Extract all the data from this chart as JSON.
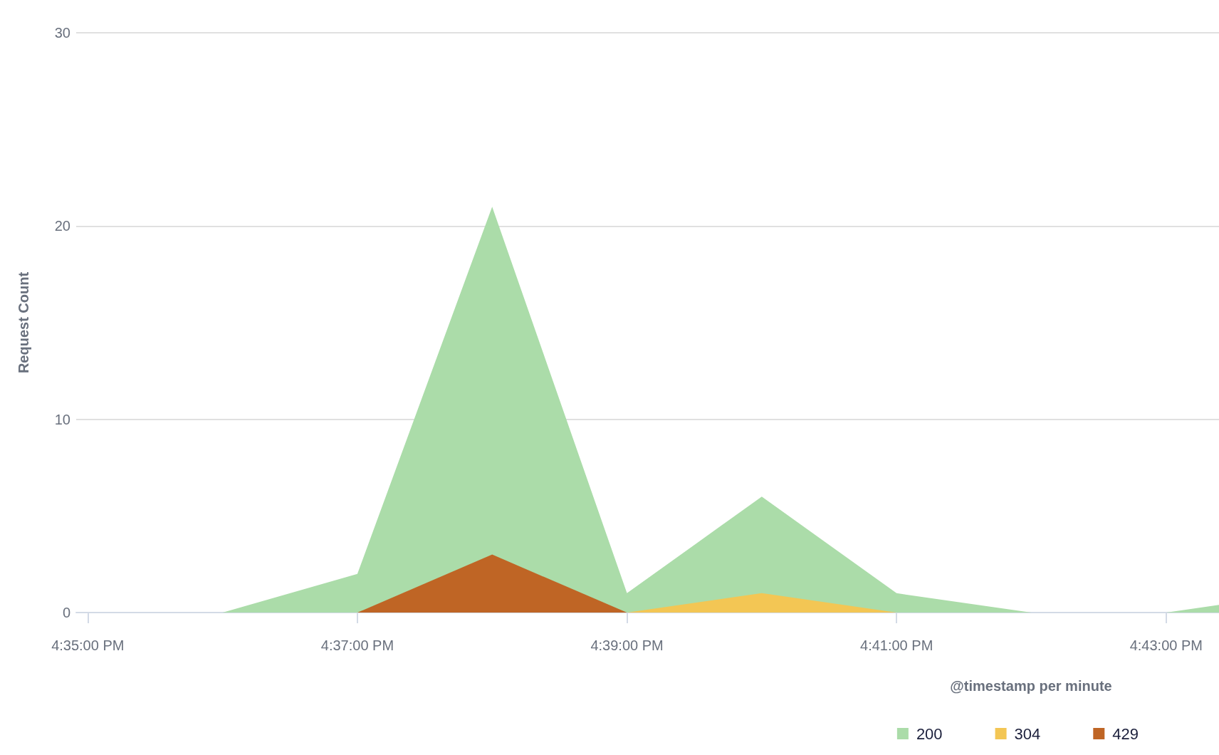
{
  "chart_data": {
    "type": "area",
    "xlabel": "@timestamp per minute",
    "ylabel": "Request Count",
    "xlim": [
      16.5819,
      16.7232
    ],
    "xticks": [
      {
        "value": 16.583333,
        "label": "4:35:00 PM"
      },
      {
        "value": 16.616667,
        "label": "4:37:00 PM"
      },
      {
        "value": 16.65,
        "label": "4:39:00 PM"
      },
      {
        "value": 16.683333,
        "label": "4:41:00 PM"
      },
      {
        "value": 16.716667,
        "label": "4:43:00 PM"
      }
    ],
    "ylim": [
      0,
      30
    ],
    "yticks": [
      0,
      10,
      20,
      30
    ],
    "grid": "y",
    "legend": "bottom right",
    "series": [
      {
        "name": "200",
        "color": "#abdca9",
        "x": [
          16.6,
          16.616667,
          16.633333,
          16.65,
          16.666667,
          16.683333,
          16.7,
          16.716667,
          16.7232
        ],
        "values": [
          0,
          2,
          21,
          1,
          6,
          1,
          0,
          0,
          0.4
        ]
      },
      {
        "name": "304",
        "color": "#f3c654",
        "x": [
          16.65,
          16.666667,
          16.683333
        ],
        "values": [
          0,
          1,
          0
        ]
      },
      {
        "name": "429",
        "color": "#bf6525",
        "x": [
          16.616667,
          16.633333,
          16.65
        ],
        "values": [
          0,
          3,
          0
        ]
      }
    ]
  }
}
